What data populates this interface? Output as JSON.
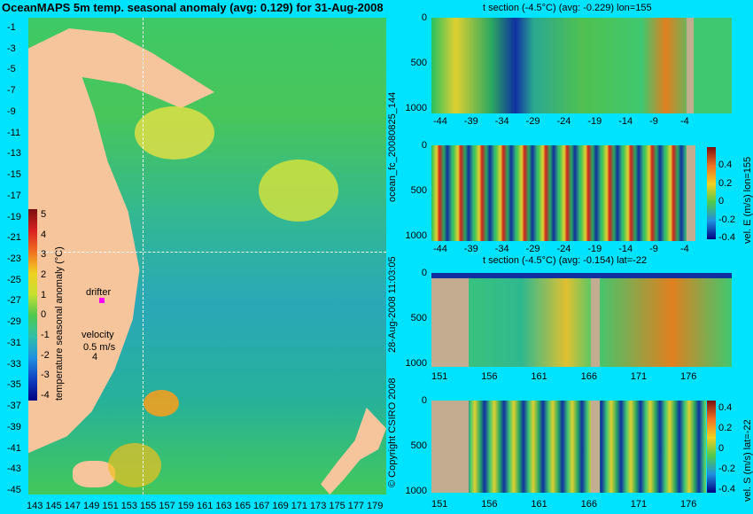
{
  "title": "OceanMAPS 5m temp. seasonal anomaly (avg: 0.129) for 31-Aug-2008",
  "map": {
    "y_ticks": [
      "-1",
      "-3",
      "-5",
      "-7",
      "-9",
      "-11",
      "-13",
      "-15",
      "-17",
      "-19",
      "-21",
      "-23",
      "-25",
      "-27",
      "-29",
      "-31",
      "-33",
      "-35",
      "-37",
      "-39",
      "-41",
      "-43",
      "-45"
    ],
    "x_ticks": [
      "143",
      "145",
      "147",
      "149",
      "151",
      "153",
      "155",
      "157",
      "159",
      "161",
      "163",
      "165",
      "167",
      "169",
      "171",
      "173",
      "175",
      "177",
      "179"
    ],
    "drifter_label": "drifter",
    "velocity_label": "velocity",
    "velocity_value": "0.5 m/s",
    "velocity_value2": "4",
    "colorbar_label": "temperature seasonal anomaly (°C)",
    "colorbar_ticks": [
      "5",
      "4",
      "3",
      "2",
      "1",
      "0",
      "-1",
      "-2",
      "-3",
      "-4"
    ]
  },
  "panel1": {
    "title": "t section (-4.5°C) (avg: -0.229) lon=155",
    "y_ticks": [
      "0",
      "500",
      "1000"
    ],
    "x_ticks": [
      "-44",
      "-39",
      "-34",
      "-29",
      "-24",
      "-19",
      "-14",
      "-9",
      "-4"
    ]
  },
  "panel2": {
    "y_ticks": [
      "0",
      "500",
      "1000"
    ],
    "x_ticks": [
      "-44",
      "-39",
      "-34",
      "-29",
      "-24",
      "-19",
      "-14",
      "-9",
      "-4"
    ],
    "side_label": "ocean_fc_20080825_144",
    "cbar_label": "vel. E (m/s) lon=155",
    "cbar_ticks": [
      "0.4",
      "0.2",
      "0",
      "-0.2",
      "-0.4"
    ]
  },
  "panel3": {
    "title": "t section (-4.5°C) (avg: -0.154) lat=-22",
    "y_ticks": [
      "0",
      "500",
      "1000"
    ],
    "x_ticks": [
      "151",
      "156",
      "161",
      "166",
      "171",
      "176"
    ],
    "side_label": "28-Aug-2008 11:03:05"
  },
  "panel4": {
    "y_ticks": [
      "0",
      "500",
      "1000"
    ],
    "x_ticks": [
      "151",
      "156",
      "161",
      "166",
      "171",
      "176"
    ],
    "side_label": "© Copyright CSIRO 2008",
    "cbar_label": "vel. S (m/s) lat=-22",
    "cbar_ticks": [
      "0.4",
      "0.2",
      "0",
      "-0.2",
      "-0.4"
    ]
  }
}
